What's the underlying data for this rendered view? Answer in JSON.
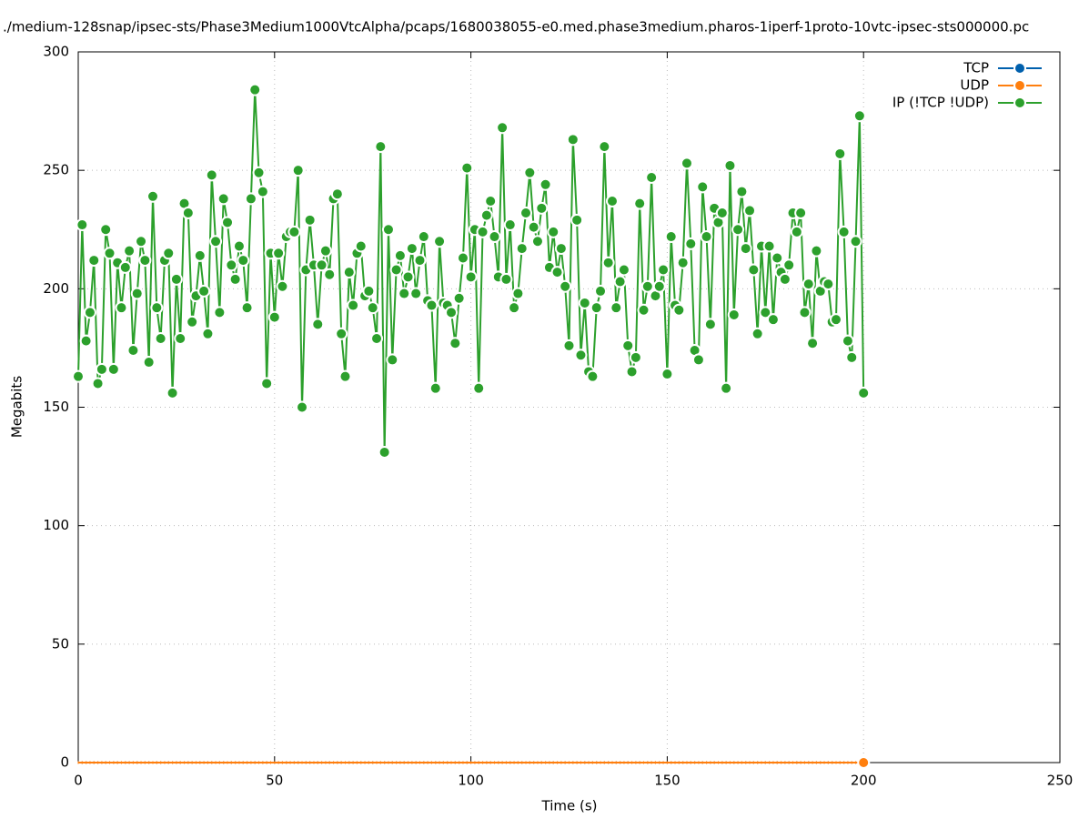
{
  "chart_data": {
    "type": "line",
    "title": "./medium-128snap/ipsec-sts/Phase3Medium1000VtcAlpha/pcaps/1680038055-e0.med.phase3medium.pharos-1iperf-1proto-10vtc-ipsec-sts000000.pc",
    "x_label": "Time (s)",
    "y_label": "Megabits",
    "xlim": [
      0,
      250
    ],
    "xticks": [
      0,
      50,
      100,
      150,
      200,
      250
    ],
    "ylim": [
      0,
      300
    ],
    "yticks": [
      0,
      50,
      100,
      150,
      200,
      250,
      300
    ],
    "grid": true,
    "legend": "top-right",
    "x": [
      0,
      1,
      2,
      3,
      4,
      5,
      6,
      7,
      8,
      9,
      10,
      11,
      12,
      13,
      14,
      15,
      16,
      17,
      18,
      19,
      20,
      21,
      22,
      23,
      24,
      25,
      26,
      27,
      28,
      29,
      30,
      31,
      32,
      33,
      34,
      35,
      36,
      37,
      38,
      39,
      40,
      41,
      42,
      43,
      44,
      45,
      46,
      47,
      48,
      49,
      50,
      51,
      52,
      53,
      54,
      55,
      56,
      57,
      58,
      59,
      60,
      61,
      62,
      63,
      64,
      65,
      66,
      67,
      68,
      69,
      70,
      71,
      72,
      73,
      74,
      75,
      76,
      77,
      78,
      79,
      80,
      81,
      82,
      83,
      84,
      85,
      86,
      87,
      88,
      89,
      90,
      91,
      92,
      93,
      94,
      95,
      96,
      97,
      98,
      99,
      100,
      101,
      102,
      103,
      104,
      105,
      106,
      107,
      108,
      109,
      110,
      111,
      112,
      113,
      114,
      115,
      116,
      117,
      118,
      119,
      120,
      121,
      122,
      123,
      124,
      125,
      126,
      127,
      128,
      129,
      130,
      131,
      132,
      133,
      134,
      135,
      136,
      137,
      138,
      139,
      140,
      141,
      142,
      143,
      144,
      145,
      146,
      147,
      148,
      149,
      150,
      151,
      152,
      153,
      154,
      155,
      156,
      157,
      158,
      159,
      160,
      161,
      162,
      163,
      164,
      165,
      166,
      167,
      168,
      169,
      170,
      171,
      172,
      173,
      174,
      175,
      176,
      177,
      178,
      179,
      180,
      181,
      182,
      183,
      184,
      185,
      186,
      187,
      188,
      189,
      190,
      191,
      192,
      193,
      194,
      195,
      196,
      197,
      198,
      199,
      200
    ],
    "series": [
      {
        "name": "TCP",
        "color": "#0060ad",
        "values": [
          0,
          0,
          0,
          0,
          0,
          0,
          0,
          0,
          0,
          0,
          0,
          0,
          0,
          0,
          0,
          0,
          0,
          0,
          0,
          0,
          0,
          0,
          0,
          0,
          0,
          0,
          0,
          0,
          0,
          0,
          0,
          0,
          0,
          0,
          0,
          0,
          0,
          0,
          0,
          0,
          0,
          0,
          0,
          0,
          0,
          0,
          0,
          0,
          0,
          0,
          0,
          0,
          0,
          0,
          0,
          0,
          0,
          0,
          0,
          0,
          0,
          0,
          0,
          0,
          0,
          0,
          0,
          0,
          0,
          0,
          0,
          0,
          0,
          0,
          0,
          0,
          0,
          0,
          0,
          0,
          0,
          0,
          0,
          0,
          0,
          0,
          0,
          0,
          0,
          0,
          0,
          0,
          0,
          0,
          0,
          0,
          0,
          0,
          0,
          0,
          0,
          0,
          0,
          0,
          0,
          0,
          0,
          0,
          0,
          0,
          0,
          0,
          0,
          0,
          0,
          0,
          0,
          0,
          0,
          0,
          0,
          0,
          0,
          0,
          0,
          0,
          0,
          0,
          0,
          0,
          0,
          0,
          0,
          0,
          0,
          0,
          0,
          0,
          0,
          0,
          0,
          0,
          0,
          0,
          0,
          0,
          0,
          0,
          0,
          0,
          0,
          0,
          0,
          0,
          0,
          0,
          0,
          0,
          0,
          0,
          0,
          0,
          0,
          0,
          0,
          0,
          0,
          0,
          0,
          0,
          0,
          0,
          0,
          0,
          0,
          0,
          0,
          0,
          0,
          0,
          0,
          0,
          0,
          0,
          0,
          0,
          0,
          0,
          0,
          0,
          0,
          0,
          0,
          0,
          0,
          0,
          0,
          0,
          0,
          0,
          0
        ]
      },
      {
        "name": "UDP",
        "color": "#ff7f0e",
        "values": [
          0,
          0,
          0,
          0,
          0,
          0,
          0,
          0,
          0,
          0,
          0,
          0,
          0,
          0,
          0,
          0,
          0,
          0,
          0,
          0,
          0,
          0,
          0,
          0,
          0,
          0,
          0,
          0,
          0,
          0,
          0,
          0,
          0,
          0,
          0,
          0,
          0,
          0,
          0,
          0,
          0,
          0,
          0,
          0,
          0,
          0,
          0,
          0,
          0,
          0,
          0,
          0,
          0,
          0,
          0,
          0,
          0,
          0,
          0,
          0,
          0,
          0,
          0,
          0,
          0,
          0,
          0,
          0,
          0,
          0,
          0,
          0,
          0,
          0,
          0,
          0,
          0,
          0,
          0,
          0,
          0,
          0,
          0,
          0,
          0,
          0,
          0,
          0,
          0,
          0,
          0,
          0,
          0,
          0,
          0,
          0,
          0,
          0,
          0,
          0,
          0,
          0,
          0,
          0,
          0,
          0,
          0,
          0,
          0,
          0,
          0,
          0,
          0,
          0,
          0,
          0,
          0,
          0,
          0,
          0,
          0,
          0,
          0,
          0,
          0,
          0,
          0,
          0,
          0,
          0,
          0,
          0,
          0,
          0,
          0,
          0,
          0,
          0,
          0,
          0,
          0,
          0,
          0,
          0,
          0,
          0,
          0,
          0,
          0,
          0,
          0,
          0,
          0,
          0,
          0,
          0,
          0,
          0,
          0,
          0,
          0,
          0,
          0,
          0,
          0,
          0,
          0,
          0,
          0,
          0,
          0,
          0,
          0,
          0,
          0,
          0,
          0,
          0,
          0,
          0,
          0,
          0,
          0,
          0,
          0,
          0,
          0,
          0,
          0,
          0,
          0,
          0,
          0,
          0,
          0,
          0,
          0,
          0,
          0,
          0,
          0
        ]
      },
      {
        "name": "IP (!TCP  !UDP)",
        "color": "#2ca02c",
        "values": [
          163,
          227,
          178,
          190,
          212,
          160,
          166,
          225,
          215,
          166,
          211,
          192,
          209,
          216,
          174,
          198,
          220,
          212,
          169,
          239,
          192,
          179,
          212,
          215,
          156,
          204,
          179,
          236,
          232,
          186,
          197,
          214,
          199,
          181,
          248,
          220,
          190,
          238,
          228,
          210,
          204,
          218,
          212,
          192,
          238,
          284,
          249,
          241,
          160,
          215,
          188,
          215,
          201,
          222,
          224,
          224,
          250,
          150,
          208,
          229,
          210,
          185,
          210,
          216,
          206,
          238,
          240,
          181,
          163,
          207,
          193,
          215,
          218,
          197,
          199,
          192,
          179,
          260,
          131,
          225,
          170,
          208,
          214,
          198,
          205,
          217,
          198,
          212,
          222,
          195,
          193,
          158,
          220,
          194,
          193,
          190,
          177,
          196,
          213,
          251,
          205,
          225,
          158,
          224,
          231,
          237,
          222,
          205,
          268,
          204,
          227,
          192,
          198,
          217,
          232,
          249,
          226,
          220,
          234,
          244,
          209,
          224,
          207,
          217,
          201,
          176,
          263,
          229,
          172,
          194,
          165,
          163,
          192,
          199,
          260,
          211,
          237,
          192,
          203,
          208,
          176,
          165,
          171,
          236,
          191,
          201,
          247,
          197,
          201,
          208,
          164,
          222,
          193,
          191,
          211,
          253,
          219,
          174,
          170,
          243,
          222,
          185,
          234,
          228,
          232,
          158,
          252,
          189,
          225,
          241,
          217,
          233,
          208,
          181,
          218,
          190,
          218,
          187,
          213,
          207,
          204,
          210,
          232,
          224,
          232,
          190,
          202,
          177,
          216,
          199,
          203,
          202,
          186,
          187,
          257,
          224,
          178,
          171,
          220,
          273,
          156
        ]
      }
    ]
  }
}
